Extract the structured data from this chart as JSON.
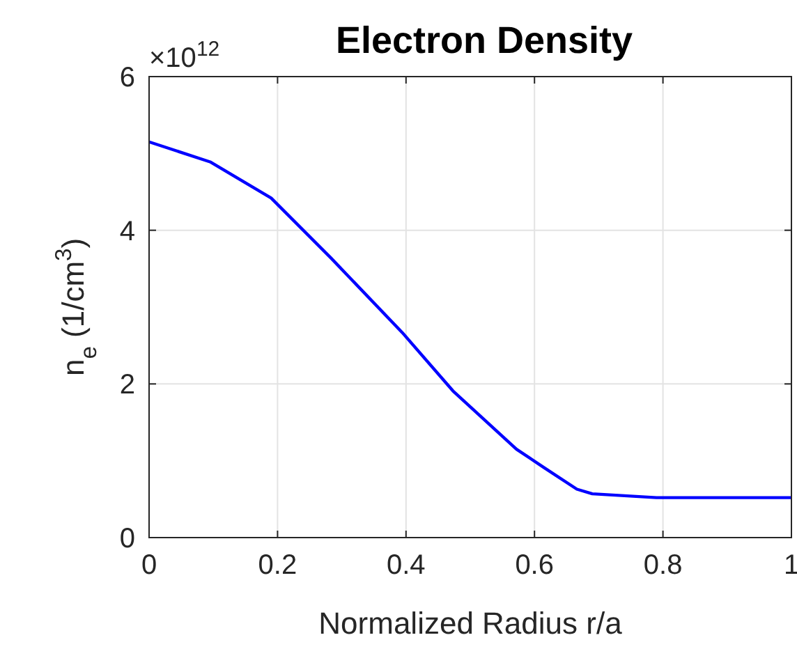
{
  "chart_data": {
    "type": "line",
    "title": "Electron Density",
    "xlabel": "Normalized Radius r/a",
    "ylabel": "n$_{e}$ (1/cm$^{3}$)",
    "annotations": [
      "×10$^{12}$"
    ],
    "xlim": [
      0,
      1
    ],
    "xticks": [
      0,
      0.2,
      0.4,
      0.6,
      0.8,
      1
    ],
    "ylim": [
      0,
      6
    ],
    "yticks": [
      0,
      2,
      4,
      6
    ],
    "grid": true,
    "series": [
      {
        "color": "#0000ff",
        "x": [
          0,
          0.095,
          0.19,
          0.283,
          0.394,
          0.473,
          0.572,
          0.615,
          0.666,
          0.69,
          0.79,
          1
        ],
        "values": [
          5.15,
          4.89,
          4.42,
          3.64,
          2.67,
          1.91,
          1.15,
          0.91,
          0.63,
          0.57,
          0.52,
          0.52
        ]
      }
    ]
  }
}
